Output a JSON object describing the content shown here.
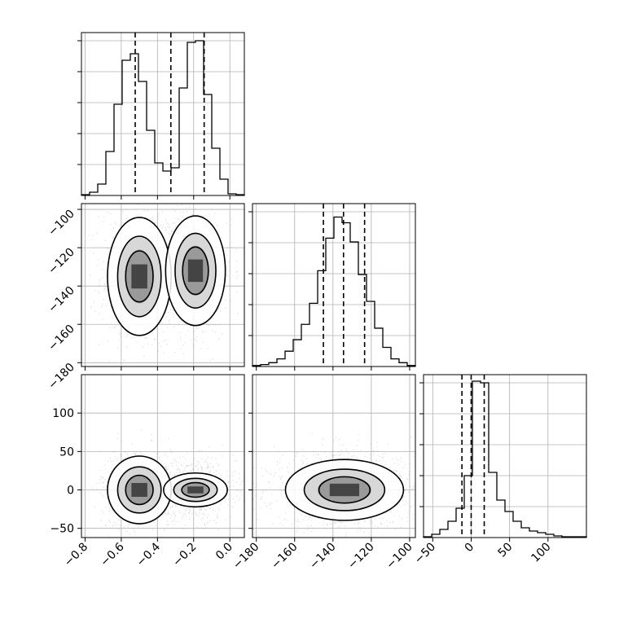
{
  "chart_data": {
    "type": "corner",
    "colors": {
      "line": "#000000",
      "grid": "#b0b0b0",
      "scatter": "#888888",
      "density": "#000000"
    },
    "parameters": [
      {
        "range": [
          -0.82,
          0.08
        ],
        "ticks": [
          "-0.8",
          "-0.6",
          "-0.4",
          "-0.2",
          "0.0"
        ],
        "tick_values": [
          -0.8,
          -0.6,
          -0.4,
          -0.2,
          0.0
        ]
      },
      {
        "range": [
          -182,
          -97
        ],
        "ticks": [
          "-180",
          "-160",
          "-140",
          "-120",
          "-100"
        ],
        "tick_values": [
          -180,
          -160,
          -140,
          -120,
          -100
        ]
      },
      {
        "range": [
          -62,
          150
        ],
        "ticks": [
          "-50",
          "0",
          "50",
          "100"
        ],
        "tick_values": [
          -50,
          0,
          50,
          100
        ]
      }
    ],
    "histograms": [
      {
        "param": 0,
        "bin_edges": [
          -0.82,
          -0.775,
          -0.73,
          -0.685,
          -0.64,
          -0.595,
          -0.55,
          -0.505,
          -0.46,
          -0.415,
          -0.37,
          -0.325,
          -0.28,
          -0.235,
          -0.19,
          -0.145,
          -0.1,
          -0.055,
          -0.01,
          0.035,
          0.08
        ],
        "counts": [
          0.5,
          2,
          7,
          27,
          56,
          83,
          87,
          70,
          40,
          20,
          15,
          17,
          66,
          94,
          95,
          62,
          29,
          10,
          1,
          0.5
        ],
        "quantiles": [
          -0.523,
          -0.326,
          -0.142
        ],
        "ymax": 100
      },
      {
        "param": 1,
        "bin_edges": [
          -182,
          -177.75,
          -173.5,
          -169.25,
          -165,
          -160.75,
          -156.5,
          -152.25,
          -148,
          -143.75,
          -139.5,
          -135.25,
          -131,
          -126.75,
          -122.5,
          -118.25,
          -114,
          -109.75,
          -105.5,
          -101.25,
          -97
        ],
        "counts": [
          0.5,
          1,
          2,
          4,
          8,
          14,
          22,
          33,
          50,
          67,
          78,
          75,
          65,
          48,
          34,
          20,
          10,
          4,
          2,
          0.5
        ],
        "quantiles": [
          -145,
          -134.5,
          -123.5
        ],
        "ymax": 85
      },
      {
        "param": 2,
        "bin_edges": [
          -62,
          -51.4,
          -40.8,
          -30.2,
          -19.6,
          -9,
          1.6,
          12.2,
          22.8,
          33.4,
          44,
          54.6,
          65.2,
          75.8,
          86.4,
          97,
          107.6,
          118.2,
          128.8,
          139.4,
          150
        ],
        "counts": [
          0.5,
          2,
          5,
          10,
          18,
          38,
          96,
          95,
          40,
          23,
          16,
          10,
          6,
          4,
          3,
          2,
          1,
          0.5,
          0.5,
          0.5
        ],
        "quantiles": [
          -12,
          0,
          17
        ],
        "ymax": 100
      }
    ],
    "pair_panels": [
      {
        "x_param": 0,
        "y_param": 1,
        "modes": [
          {
            "cx": -0.5,
            "cy": -135,
            "sx": 0.08,
            "sy": 14,
            "weight": 0.5
          },
          {
            "cx": -0.19,
            "cy": -132,
            "sx": 0.075,
            "sy": 13,
            "weight": 0.5
          }
        ]
      },
      {
        "x_param": 0,
        "y_param": 2,
        "modes": [
          {
            "cx": -0.5,
            "cy": 0,
            "sx": 0.08,
            "sy": 20,
            "weight": 0.5
          },
          {
            "cx": -0.19,
            "cy": 0,
            "sx": 0.08,
            "sy": 10,
            "weight": 0.5
          }
        ]
      },
      {
        "x_param": 1,
        "y_param": 2,
        "modes": [
          {
            "cx": -134,
            "cy": 0,
            "sx": 14,
            "sy": 18,
            "weight": 1.0
          }
        ]
      }
    ]
  }
}
